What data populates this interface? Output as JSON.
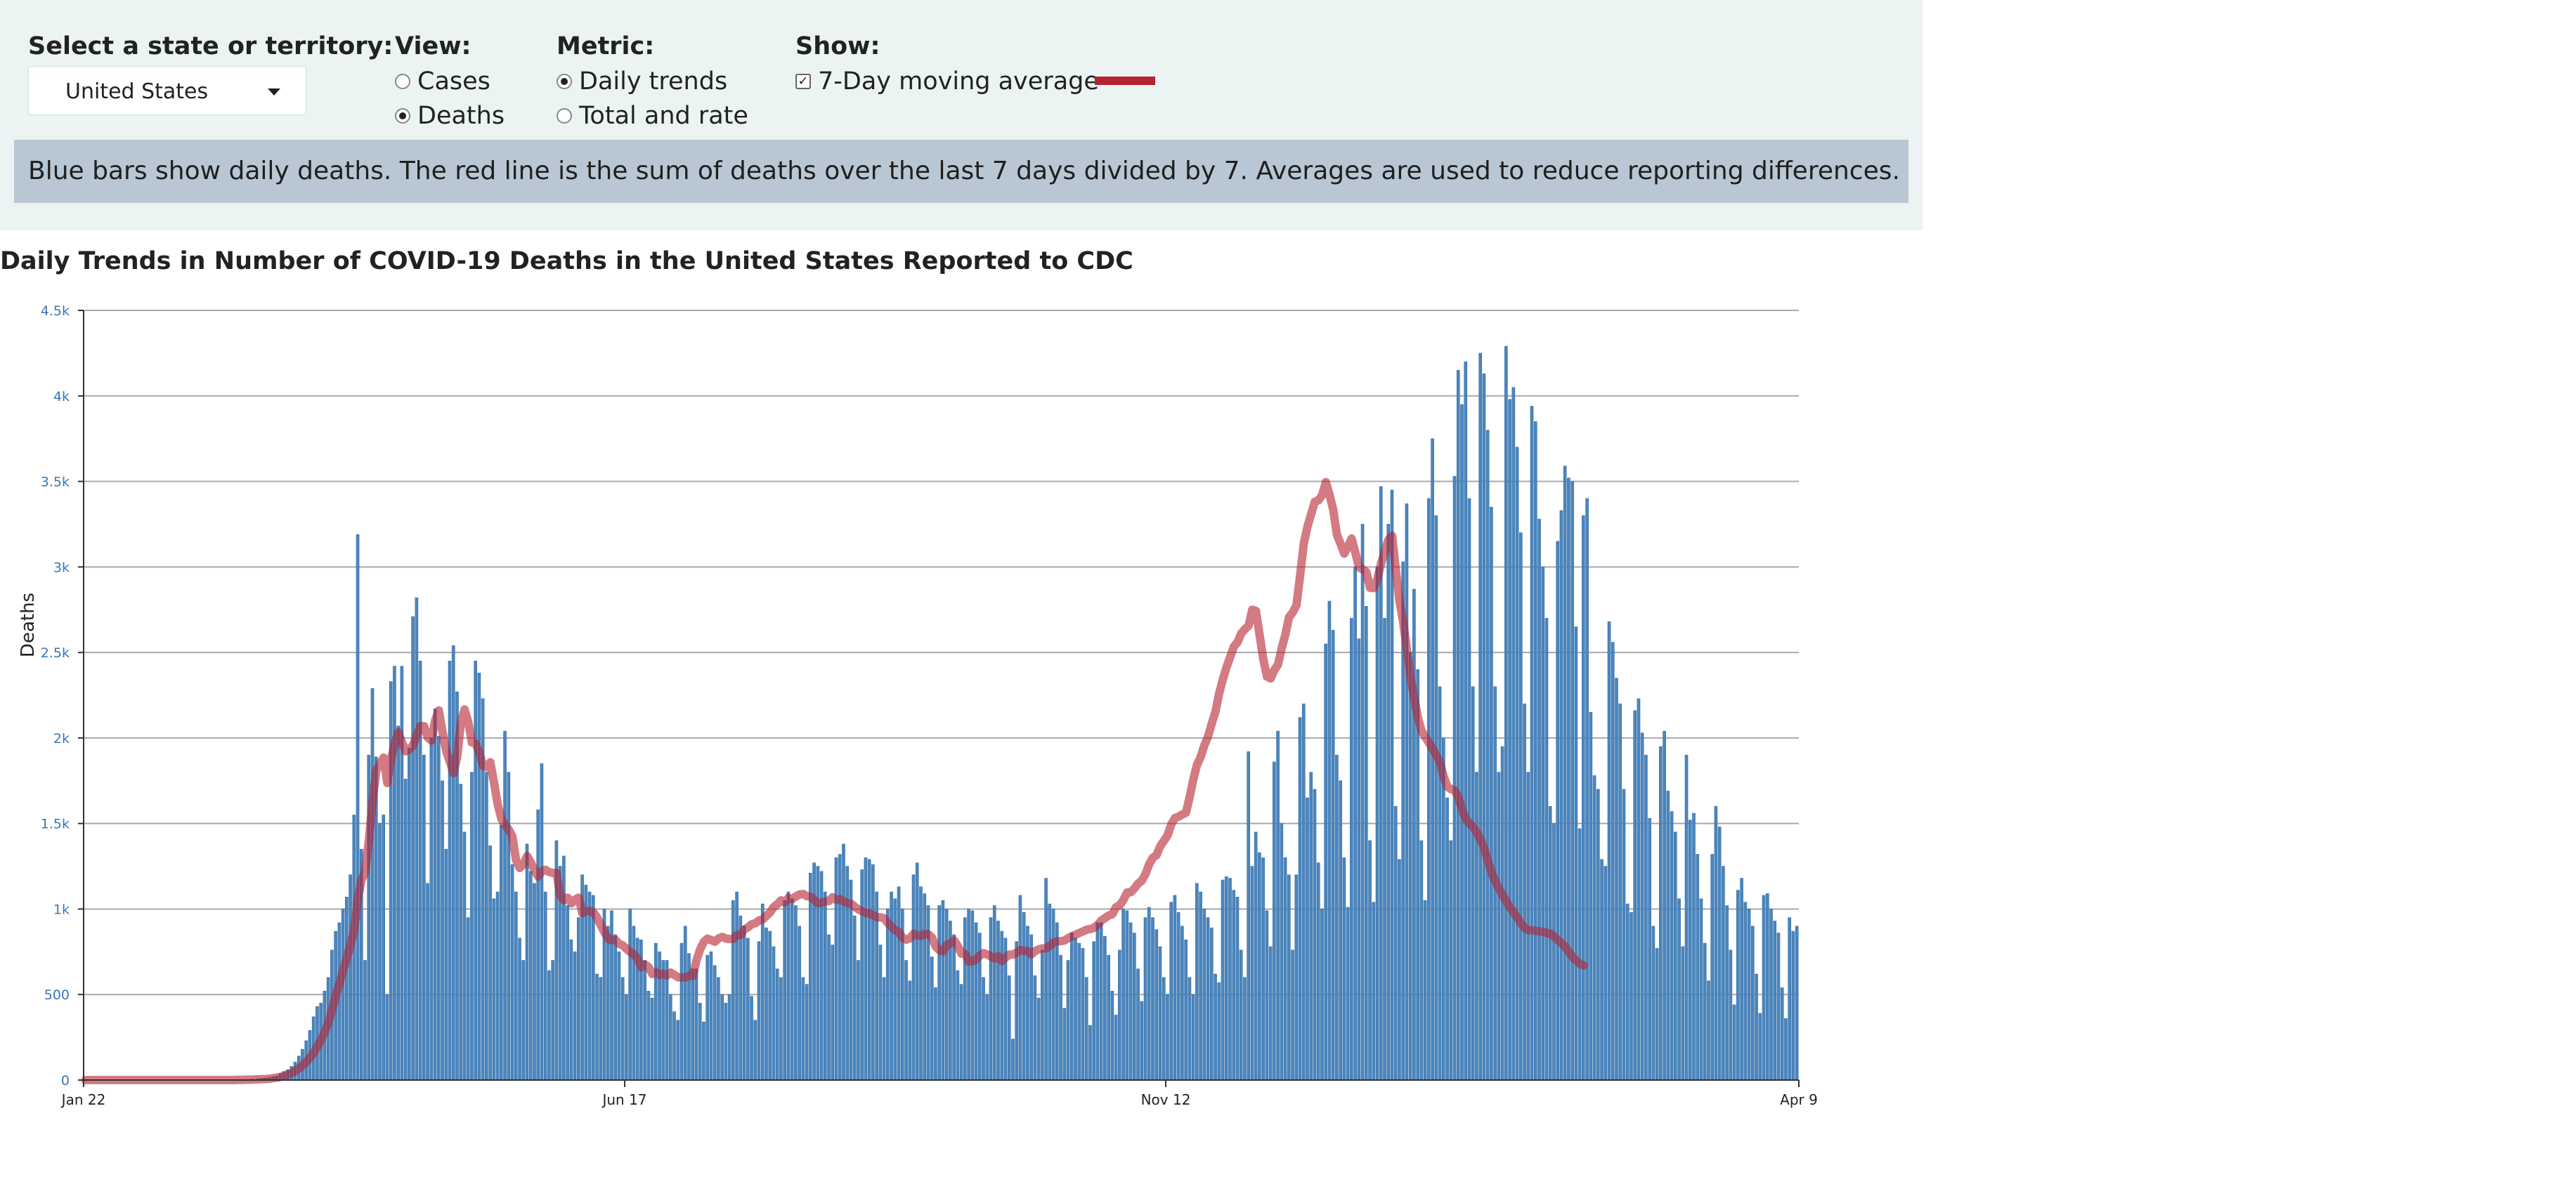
{
  "controls": {
    "state_label": "Select a state or territory:",
    "state_selected": "United States",
    "view_label": "View:",
    "view_options": [
      "Cases",
      "Deaths"
    ],
    "view_selected": "Deaths",
    "metric_label": "Metric:",
    "metric_options": [
      "Daily trends",
      "Total and rate"
    ],
    "metric_selected": "Daily trends",
    "show_label": "Show:",
    "show_option": "7-Day moving average",
    "show_checked": true,
    "legend_color": "#b52230"
  },
  "info_text": "Blue bars show daily deaths. The red line is the sum of deaths over the last 7 days divided by 7. Averages are used to reduce reporting differences.",
  "chart_title": "Daily Trends in Number of COVID-19 Deaths in the United States Reported to CDC",
  "chart_data": {
    "type": "bar",
    "title": "",
    "ylabel": "Deaths",
    "xlabel": "",
    "ylim": [
      0,
      4500
    ],
    "yticks": [
      0,
      500,
      1000,
      1500,
      2000,
      2500,
      3000,
      3500,
      4000,
      4500
    ],
    "ytick_labels": [
      "0",
      "500",
      "1k",
      "1.5k",
      "2k",
      "2.5k",
      "3k",
      "3.5k",
      "4k",
      "4.5k"
    ],
    "xtick_labels": [
      "Jan 22",
      "Jun 17",
      "Nov 12",
      "Apr 9"
    ],
    "grid": true,
    "bar_color": "#4a86bf",
    "line_color": "#b52230",
    "series": [
      {
        "name": "Daily deaths",
        "values": [
          0,
          0,
          0,
          0,
          0,
          0,
          0,
          0,
          0,
          0,
          0,
          0,
          0,
          0,
          0,
          0,
          0,
          0,
          0,
          0,
          0,
          0,
          0,
          0,
          0,
          0,
          0,
          0,
          0,
          0,
          0,
          0,
          0,
          0,
          0,
          0,
          0,
          0,
          0,
          1,
          0,
          2,
          1,
          3,
          2,
          5,
          4,
          8,
          10,
          12,
          15,
          20,
          24,
          38,
          50,
          60,
          80,
          105,
          140,
          180,
          230,
          290,
          370,
          430,
          450,
          520,
          600,
          760,
          870,
          920,
          1000,
          1070,
          1200,
          1550,
          3190,
          1350,
          700,
          1900,
          2290,
          1890,
          1500,
          1550,
          500,
          2330,
          2420,
          2070,
          2420,
          1760,
          1940,
          2710,
          2820,
          2450,
          1900,
          1150,
          2000,
          2170,
          2010,
          1750,
          1350,
          2450,
          2540,
          2270,
          1730,
          1450,
          950,
          1800,
          2450,
          2380,
          2230,
          1800,
          1370,
          1060,
          1100,
          1490,
          2040,
          1800,
          1260,
          1100,
          830,
          700,
          1380,
          1220,
          1150,
          1580,
          1850,
          1100,
          640,
          700,
          1400,
          1250,
          1310,
          1020,
          820,
          750,
          950,
          1200,
          1140,
          1100,
          1080,
          620,
          600,
          1000,
          900,
          990,
          850,
          750,
          600,
          500,
          1000,
          900,
          830,
          820,
          700,
          520,
          480,
          800,
          750,
          700,
          700,
          500,
          400,
          350,
          800,
          900,
          740,
          650,
          650,
          450,
          340,
          730,
          750,
          670,
          600,
          500,
          450,
          500,
          1050,
          1100,
          960,
          900,
          830,
          490,
          350,
          810,
          1030,
          890,
          870,
          780,
          650,
          600,
          1050,
          1100,
          1060,
          1020,
          900,
          600,
          560,
          1210,
          1270,
          1250,
          1220,
          1100,
          850,
          790,
          1300,
          1320,
          1380,
          1250,
          1170,
          960,
          700,
          1230,
          1300,
          1290,
          1260,
          1100,
          790,
          600,
          1000,
          1100,
          1060,
          1130,
          1000,
          700,
          580,
          1200,
          1270,
          1130,
          1090,
          1020,
          720,
          540,
          1020,
          1050,
          1000,
          930,
          850,
          640,
          560,
          950,
          1000,
          990,
          920,
          860,
          600,
          500,
          950,
          1020,
          930,
          870,
          830,
          610,
          240,
          810,
          1080,
          980,
          900,
          850,
          610,
          480,
          760,
          1180,
          1030,
          1000,
          920,
          730,
          420,
          700,
          860,
          830,
          800,
          770,
          600,
          320,
          810,
          920,
          920,
          840,
          730,
          520,
          380,
          760,
          1000,
          990,
          920,
          860,
          650,
          460,
          950,
          1010,
          950,
          880,
          780,
          600,
          500,
          1040,
          1080,
          980,
          900,
          820,
          600,
          500,
          1150,
          1100,
          1000,
          950,
          890,
          620,
          570,
          1170,
          1190,
          1180,
          1110,
          1070,
          760,
          600,
          1920,
          1250,
          1450,
          1330,
          1300,
          990,
          780,
          1860,
          2040,
          1500,
          1300,
          1200,
          760,
          1200,
          2120,
          2200,
          1650,
          1800,
          1700,
          1270,
          1000,
          2550,
          2800,
          2630,
          1900,
          1750,
          1300,
          1010,
          2700,
          3000,
          2580,
          3250,
          2770,
          1400,
          1040,
          3000,
          3470,
          2700,
          3250,
          3450,
          1600,
          1290,
          3030,
          3370,
          2500,
          2870,
          2400,
          1400,
          1050,
          3400,
          3750,
          3300,
          2300,
          2000,
          1650,
          1400,
          3530,
          4150,
          3950,
          4200,
          3400,
          2300,
          1800,
          4250,
          4130,
          3800,
          3350,
          2300,
          1800,
          1950,
          4290,
          3980,
          4050,
          3700,
          3200,
          2200,
          1800,
          3940,
          3850,
          3280,
          3000,
          2700,
          1600,
          1500,
          3150,
          3330,
          3590,
          3520,
          3500,
          2650,
          1470,
          3300,
          3400,
          2150,
          1780,
          1700,
          1290,
          1250,
          2680,
          2560,
          2350,
          2200,
          1700,
          1030,
          980,
          2160,
          2230,
          2030,
          1900,
          1530,
          900,
          770,
          1950,
          2040,
          1690,
          1570,
          1450,
          1060,
          780,
          1900,
          1520,
          1560,
          1320,
          1060,
          800,
          580,
          1320,
          1600,
          1480,
          1250,
          1020,
          760,
          440,
          1110,
          1180,
          1040,
          1000,
          900,
          620,
          390,
          1080,
          1090,
          1000,
          930,
          860,
          540,
          360,
          950,
          870,
          900
        ]
      },
      {
        "name": "7-Day moving average",
        "values": [
          0,
          0,
          0,
          0,
          0,
          0,
          0,
          0,
          0,
          0,
          0,
          0,
          0,
          0,
          0,
          0,
          0,
          0,
          0,
          0,
          0,
          0,
          0,
          0,
          0,
          0,
          0,
          0,
          0,
          0,
          0,
          0,
          0,
          0,
          0,
          0,
          0,
          0,
          0,
          0,
          0,
          1,
          1,
          1,
          2,
          2,
          3,
          4,
          5,
          6,
          8,
          11,
          14,
          18,
          25,
          32,
          41,
          53,
          68,
          86,
          107,
          131,
          160,
          195,
          235,
          282,
          336,
          412,
          493,
          563,
          640,
          711,
          793,
          871,
          1058,
          1170,
          1219,
          1402,
          1627,
          1809,
          1848,
          1885,
          1737,
          1875,
          1964,
          2033,
          1975,
          1922,
          1934,
          1957,
          2016,
          2070,
          2069,
          2003,
          1985,
          2103,
          2161,
          2036,
          1924,
          1860,
          1795,
          1891,
          2089,
          2167,
          2093,
          1973,
          1968,
          1912,
          1838,
          1829,
          1858,
          1737,
          1612,
          1527,
          1490,
          1465,
          1424,
          1285,
          1240,
          1263,
          1310,
          1272,
          1229,
          1190,
          1221,
          1229,
          1216,
          1211,
          1210,
          1079,
          1051,
          1066,
          1033,
          1055,
          1066,
          975,
          988,
          989,
          980,
          951,
          905,
          864,
          826,
          818,
          820,
          796,
          787,
          767,
          749,
          734,
          711,
          659,
          676,
          661,
          620,
          631,
          614,
          623,
          611,
          628,
          615,
          601,
          600,
          600,
          611,
          608,
          700,
          764,
          808,
          827,
          818,
          809,
          828,
          837,
          828,
          824,
          826,
          847,
          849,
          881,
          893,
          911,
          917,
          933,
          940,
          960,
          980,
          1012,
          1028,
          1051,
          1039,
          1065,
          1058,
          1074,
          1085,
          1088,
          1075,
          1072,
          1052,
          1034,
          1037,
          1044,
          1047,
          1069,
          1053,
          1058,
          1045,
          1035,
          1031,
          1013,
          998,
          987,
          977,
          974,
          964,
          953,
          951,
          946,
          918,
          896,
          875,
          866,
          831,
          821,
          829,
          855,
          846,
          843,
          853,
          852,
          833,
          780,
          759,
          752,
          790,
          798,
          816,
          784,
          739,
          738,
          693,
          694,
          707,
          728,
          742,
          734,
          723,
          710,
          724,
          696,
          717,
          734,
          734,
          746,
          760,
          755,
          754,
          735,
          754,
          764,
          770,
          770,
          785,
          804,
          811,
          812,
          816,
          830,
          841,
          850,
          860,
          869,
          879,
          883,
          890,
          907,
          933,
          947,
          962,
          970,
          1011,
          1022,
          1053,
          1097,
          1098,
          1121,
          1149,
          1166,
          1205,
          1262,
          1300,
          1315,
          1367,
          1399,
          1431,
          1495,
          1532,
          1540,
          1553,
          1563,
          1656,
          1760,
          1844,
          1890,
          1958,
          2009,
          2085,
          2153,
          2260,
          2342,
          2413,
          2473,
          2534,
          2560,
          2611,
          2636,
          2656,
          2750,
          2743,
          2602,
          2461,
          2359,
          2348,
          2397,
          2430,
          2525,
          2605,
          2707,
          2734,
          2775,
          2950,
          3137,
          3235,
          3309,
          3381,
          3390,
          3420,
          3496,
          3422,
          3334,
          3188,
          3135,
          3078,
          3119,
          3166,
          3085,
          2998,
          2986,
          2971,
          2878,
          2876,
          2930,
          3020,
          3090,
          3160,
          3182,
          2985,
          2800,
          2680,
          2520,
          2357,
          2234,
          2120,
          2042,
          2006,
          1972,
          1938,
          1898,
          1859,
          1775,
          1716,
          1700,
          1693,
          1656,
          1582,
          1527,
          1500,
          1480,
          1448,
          1407,
          1355,
          1286,
          1215,
          1163,
          1120,
          1082,
          1047,
          1010,
          982,
          950,
          916,
          890,
          876,
          876,
          872,
          870,
          866,
          860,
          855,
          840,
          820,
          800,
          780,
          750,
          720,
          700,
          680,
          670
        ]
      }
    ]
  }
}
